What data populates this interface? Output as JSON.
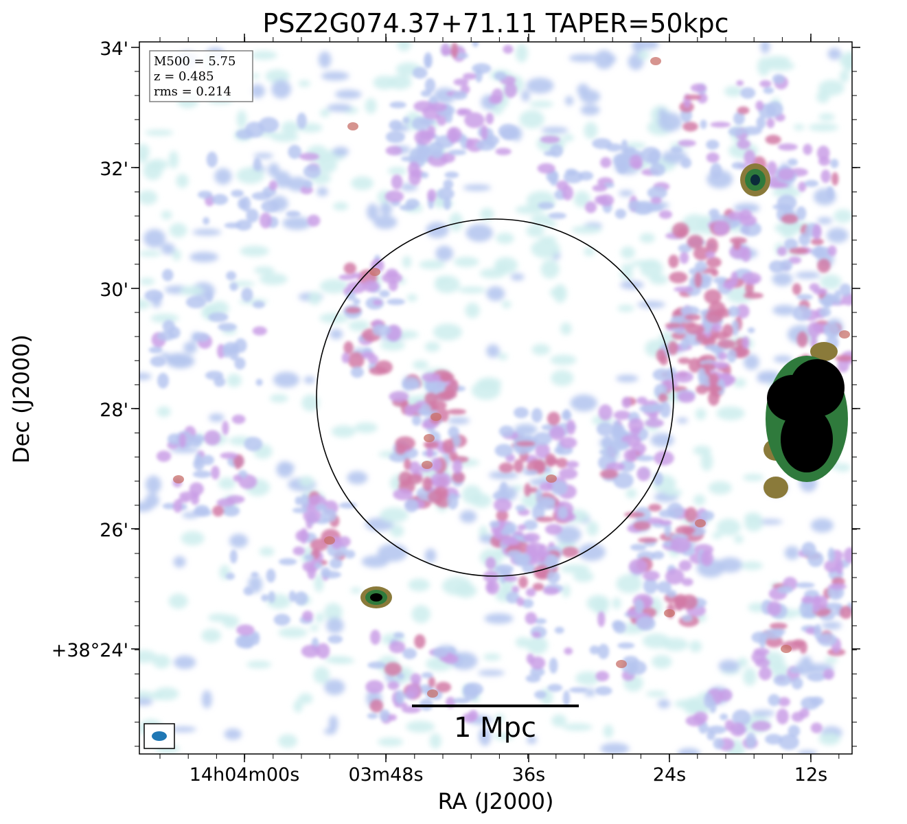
{
  "chart_data": {
    "type": "heatmap",
    "title": "PSZ2G074.37+71.11 TAPER=50kpc",
    "xlabel": "RA (J2000)",
    "ylabel": "Dec (J2000)",
    "x_ticks": [
      "14h04m00s",
      "03m48s",
      "36s",
      "24s",
      "12s"
    ],
    "y_ticks": [
      "34'",
      "32'",
      "30'",
      "28'",
      "26'",
      "+38°24'"
    ],
    "info_box": [
      "M500 = 5.75",
      "z = 0.485",
      "rms = 0.214"
    ],
    "info_placement": "top-left",
    "scale_bar_label": "1 Mpc",
    "scale_bar_placement": "bottom-center",
    "beam_placement": "bottom-left",
    "circle": "centered on cluster, black outline",
    "colormap": [
      "#ffffff",
      "#cfeeee",
      "#b6c6f0",
      "#c99ee6",
      "#d27aa6",
      "#c8706a",
      "#8a7a3a",
      "#2f7a3c",
      "#0b2a3a",
      "#000000"
    ],
    "beam_color": "#1f77b4"
  }
}
